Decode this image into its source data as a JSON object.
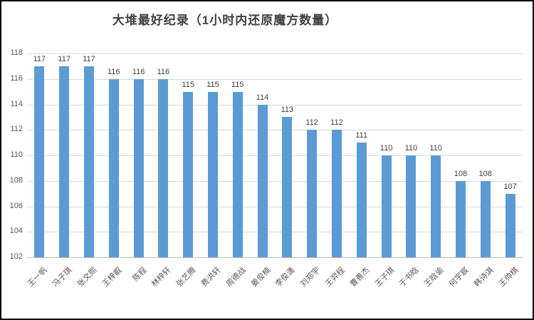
{
  "chart_data": {
    "type": "bar",
    "title": "大堆最好纪录（1小时内还原魔方数量）",
    "categories": [
      "王一帆",
      "冯子琪",
      "张文熙",
      "王梓叡",
      "陈程",
      "林梓轩",
      "张艺腾",
      "费洪轩",
      "周德战",
      "姜俊楠",
      "李俊潇",
      "刘郑宇",
      "王羿程",
      "曹善杰",
      "王子琪",
      "于书晗",
      "王晗谕",
      "何宇宸",
      "韩诗淇",
      "王帅棋"
    ],
    "values": [
      117,
      117,
      117,
      116,
      116,
      116,
      115,
      115,
      115,
      114,
      113,
      112,
      112,
      111,
      110,
      110,
      110,
      108,
      108,
      107
    ],
    "data_labels_shown": true,
    "xlabel": "",
    "ylabel": "",
    "ylim": [
      102,
      118
    ],
    "yticks": [
      102,
      104,
      106,
      108,
      110,
      112,
      114,
      116,
      118
    ],
    "grid": true,
    "legend_position": "none",
    "category_label_rotation_deg": 45
  },
  "style": {
    "bar_color": "#5b9bd5",
    "gridline_color": "#d9d9d9",
    "axis_line_color": "#bfbfbf",
    "tick_label_color": "#595959",
    "data_label_color": "#404040",
    "title_color": "#3f3f3f",
    "background_color": "#ffffff",
    "border_color": "#000000"
  }
}
